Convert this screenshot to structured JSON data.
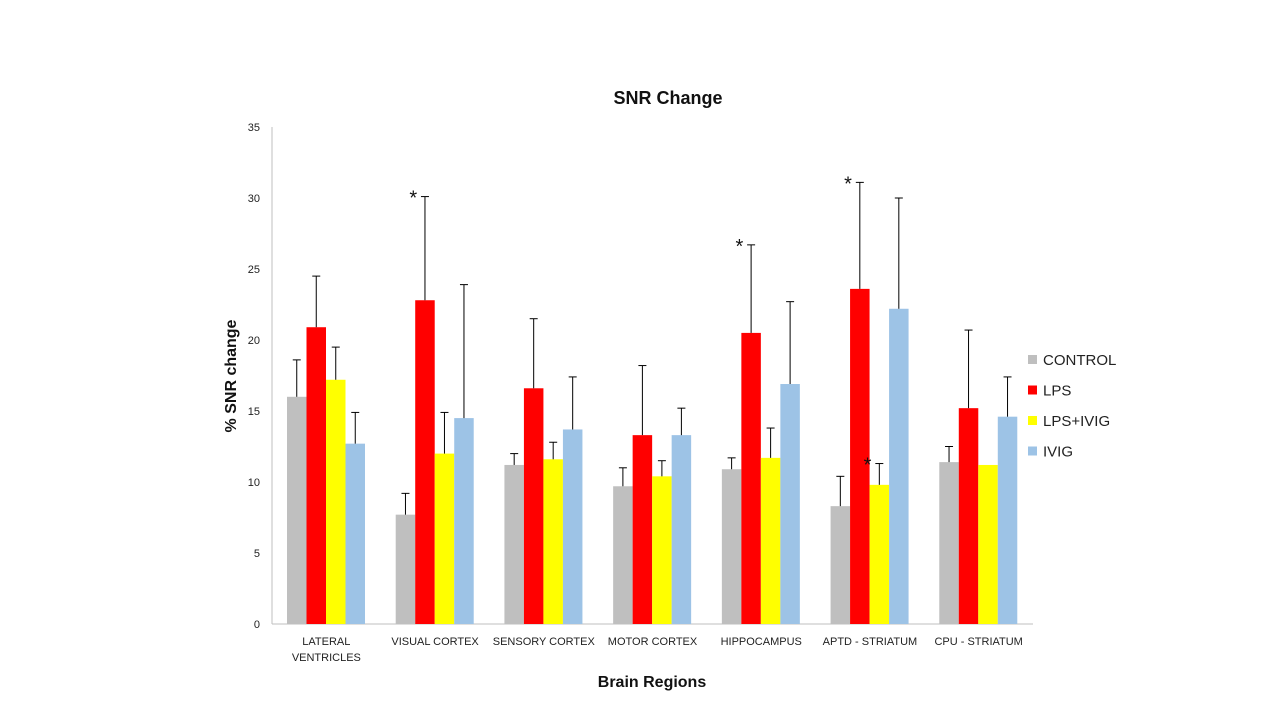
{
  "chart_data": {
    "type": "bar",
    "title": "SNR Change",
    "xlabel": "Brain Regions",
    "ylabel": "% SNR change",
    "ylim": [
      0,
      35
    ],
    "yticks": [
      "0",
      "5",
      "10",
      "15",
      "20",
      "25",
      "30",
      "35"
    ],
    "grid": false,
    "legend_position": "right",
    "categories": [
      [
        "LATERAL",
        "VENTRICLES"
      ],
      [
        "VISUAL CORTEX"
      ],
      [
        "SENSORY CORTEX"
      ],
      [
        "MOTOR CORTEX"
      ],
      [
        "HIPPOCAMPUS"
      ],
      [
        "APTD - STRIATUM"
      ],
      [
        "CPU - STRIATUM"
      ]
    ],
    "series": [
      {
        "name": "CONTROL",
        "color": "#bfbfbf",
        "values": [
          16.0,
          7.7,
          11.2,
          9.7,
          10.9,
          8.3,
          11.4
        ],
        "errors": [
          2.6,
          1.5,
          0.8,
          1.3,
          0.8,
          2.1,
          1.1
        ]
      },
      {
        "name": "LPS",
        "color": "#ff0000",
        "values": [
          20.9,
          22.8,
          16.6,
          13.3,
          20.5,
          23.6,
          15.2
        ],
        "errors": [
          3.6,
          7.3,
          4.9,
          4.9,
          6.2,
          7.5,
          5.5
        ]
      },
      {
        "name": "LPS+IVIG",
        "color": "#ffff00",
        "values": [
          17.2,
          12.0,
          11.6,
          10.4,
          11.7,
          9.8,
          11.2
        ],
        "errors": [
          2.3,
          2.9,
          1.2,
          1.1,
          2.1,
          1.5,
          0.0
        ]
      },
      {
        "name": "IVIG",
        "color": "#9dc3e6",
        "values": [
          12.7,
          14.5,
          13.7,
          13.3,
          16.9,
          22.2,
          14.6
        ],
        "errors": [
          2.2,
          9.4,
          3.7,
          1.9,
          5.8,
          7.8,
          2.8
        ]
      }
    ],
    "annotations": [
      {
        "text": "*",
        "category": 1,
        "series": 1
      },
      {
        "text": "*",
        "category": 4,
        "series": 1
      },
      {
        "text": "*",
        "category": 5,
        "series": 1
      },
      {
        "text": "*",
        "category": 5,
        "series": 2
      }
    ]
  }
}
